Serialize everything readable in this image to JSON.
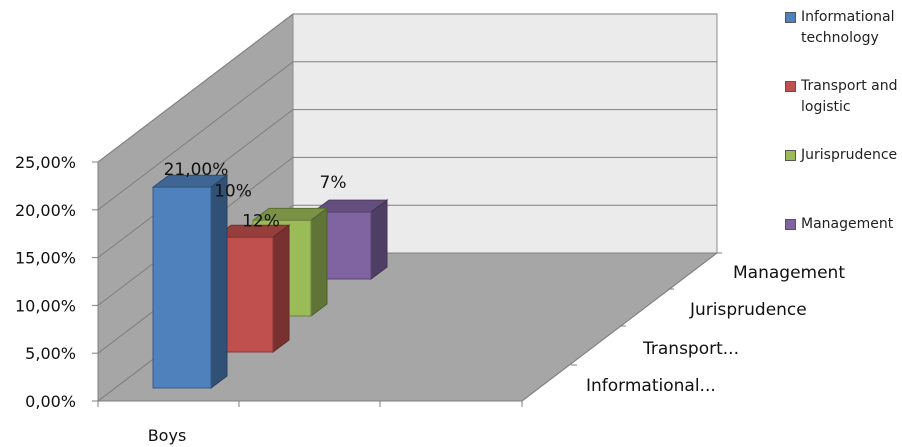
{
  "chart_data": {
    "type": "bar",
    "categories": [
      "Boys"
    ],
    "series": [
      {
        "name": "Informational technology",
        "values": [
          21.0
        ],
        "label": "21,00%",
        "color": "#4f81bd"
      },
      {
        "name": "Transport and logistic",
        "values": [
          12.0
        ],
        "label": "12%",
        "color": "#c0504d"
      },
      {
        "name": "Jurisprudence",
        "values": [
          10.0
        ],
        "label": "10%",
        "color": "#9bbb59"
      },
      {
        "name": "Management",
        "values": [
          7.0
        ],
        "label": "7%",
        "color": "#8064a2"
      }
    ],
    "depth_axis_labels": [
      "Management",
      "Jurisprudence",
      "Transport...",
      "Informational..."
    ],
    "y_tick_labels": [
      "0,00%",
      "5,00%",
      "10,00%",
      "15,00%",
      "20,00%",
      "25,00%"
    ],
    "ylim": [
      0,
      25
    ],
    "grid": true,
    "legend_position": "right"
  }
}
